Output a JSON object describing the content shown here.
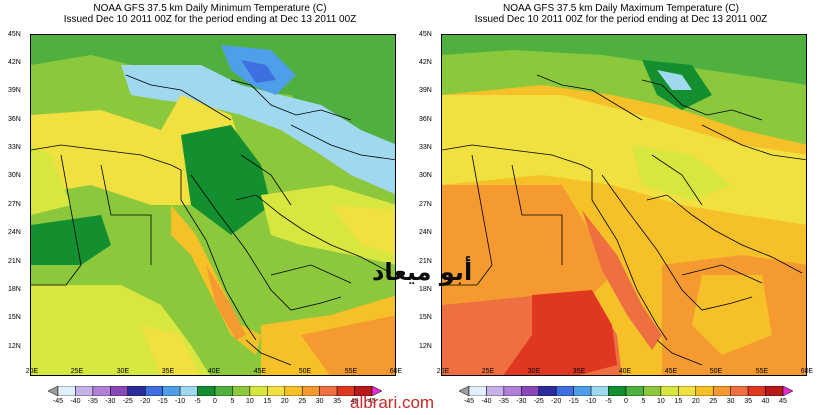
{
  "panels": [
    {
      "title_line1": "NOAA GFS 37.5 km Daily Minimum Temperature (C)",
      "title_line2": "Issued Dec 10 2011 00Z for the period ending at Dec 13 2011 00Z"
    },
    {
      "title_line1": "NOAA GFS 37.5 km Daily Maximum Temperature (C)",
      "title_line2": "Issued Dec 10 2011 00Z for the period ending at Dec 13 2011 00Z"
    }
  ],
  "axes": {
    "lat_ticks": [
      "45N",
      "42N",
      "39N",
      "36N",
      "33N",
      "30N",
      "27N",
      "24N",
      "21N",
      "18N",
      "15N",
      "12N"
    ],
    "lon_ticks": [
      "20E",
      "25E",
      "30E",
      "35E",
      "40E",
      "45E",
      "50E",
      "55E",
      "60E"
    ]
  },
  "colorbar": {
    "labels": [
      "-45",
      "-40",
      "-35",
      "-30",
      "-25",
      "-20",
      "-15",
      "-10",
      "-5",
      "0",
      "5",
      "10",
      "15",
      "20",
      "25",
      "30",
      "35",
      "40",
      "45"
    ],
    "colors": [
      "#9b9b9b",
      "#e0f0ff",
      "#c8b0e8",
      "#b080d8",
      "#8848b8",
      "#2c2c9c",
      "#3f6ee0",
      "#4f9fe8",
      "#a0d8f0",
      "#138f2f",
      "#4fb040",
      "#8cc83c",
      "#d8e640",
      "#f0e040",
      "#f5c028",
      "#f59a30",
      "#ee7040",
      "#e03820",
      "#b81818",
      "#e02ed0"
    ]
  },
  "watermark": {
    "arabic": "أبو ميعاد",
    "site": "albrari.com"
  }
}
